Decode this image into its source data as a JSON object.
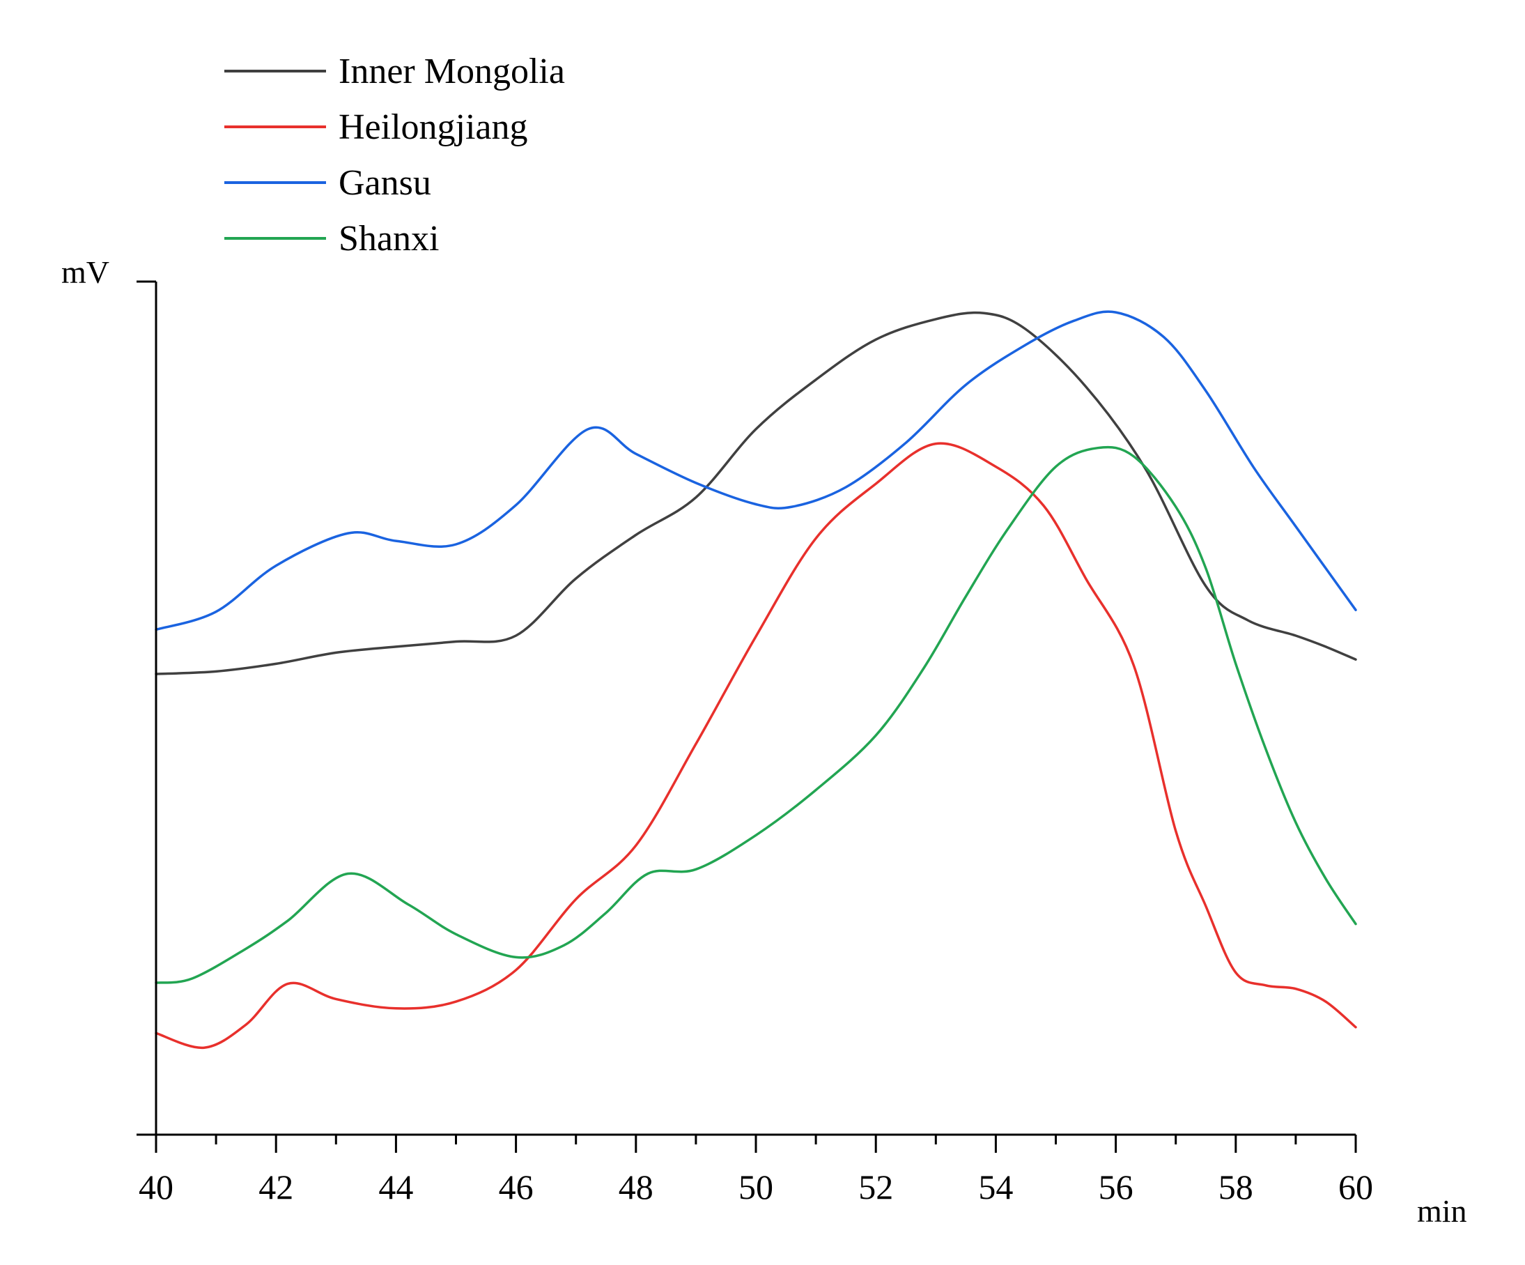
{
  "chart_data": {
    "type": "line",
    "title": "",
    "xlabel": "min",
    "ylabel": "mV",
    "xlim": [
      40,
      60
    ],
    "ylim": [
      0,
      100
    ],
    "x_ticks": [
      40,
      42,
      44,
      46,
      48,
      50,
      52,
      54,
      56,
      58,
      60
    ],
    "x_minor_step": 1,
    "legend": "top-left",
    "grid": false,
    "series": [
      {
        "name": "Inner Mongolia",
        "color": "#404040",
        "x": [
          40,
          41,
          42,
          43,
          44,
          45,
          46,
          47,
          48,
          49,
          50,
          51,
          52,
          53,
          53.8,
          54.5,
          55.5,
          56.5,
          57.5,
          58.2,
          59,
          59.5,
          60
        ],
        "y": [
          54,
          54.3,
          55.2,
          56.5,
          57.2,
          57.8,
          58.5,
          65.2,
          70.3,
          74.7,
          82.7,
          88.5,
          93.2,
          95.6,
          96.3,
          94.4,
          87.7,
          78,
          64.3,
          60.3,
          58.5,
          57.2,
          55.7
        ]
      },
      {
        "name": "Heilongjiang",
        "color": "#e8302c",
        "x": [
          40,
          40.8,
          41.5,
          42.2,
          43,
          44,
          45,
          46,
          47,
          48,
          49,
          50,
          51,
          52,
          53,
          54,
          54.8,
          55.5,
          56.3,
          57,
          57.5,
          58,
          58.5,
          59,
          59.5,
          60
        ],
        "y": [
          11.9,
          10.2,
          12.9,
          17.7,
          15.9,
          14.8,
          15.6,
          19.3,
          27.6,
          33.9,
          45.8,
          58.4,
          69.9,
          76.3,
          81,
          78.3,
          73.7,
          65.2,
          55,
          35.6,
          26.8,
          19,
          17.5,
          17.1,
          15.6,
          12.6
        ]
      },
      {
        "name": "Gansu",
        "color": "#1a63e0",
        "x": [
          40,
          41,
          42,
          43.2,
          44,
          45,
          46,
          47.2,
          48,
          49,
          50,
          50.6,
          51.5,
          52.5,
          53.5,
          54.5,
          55.3,
          56,
          56.8,
          57.5,
          58.3,
          59,
          60
        ],
        "y": [
          59.2,
          61.3,
          66.7,
          70.5,
          69.6,
          69.2,
          73.8,
          82.7,
          79.8,
          76.4,
          73.9,
          73.6,
          75.9,
          81.1,
          87.9,
          92.6,
          95.4,
          96.4,
          93.5,
          87.2,
          78.2,
          71.3,
          61.5
        ]
      },
      {
        "name": "Shanxi",
        "color": "#22a552",
        "x": [
          40,
          40.6,
          41.5,
          42.2,
          43.2,
          44.2,
          45,
          46,
          46.8,
          47.5,
          48.2,
          49,
          50,
          51,
          52,
          52.8,
          53.5,
          54.2,
          55,
          55.7,
          56.3,
          57,
          57.5,
          58,
          58.5,
          59,
          59.5,
          60
        ],
        "y": [
          17.8,
          18.3,
          21.8,
          25.1,
          30.6,
          27,
          23.5,
          20.8,
          22.2,
          26,
          30.6,
          31.1,
          35.1,
          40.4,
          46.8,
          54.7,
          63.1,
          71,
          78.3,
          80.5,
          79.5,
          73.6,
          66.4,
          55.2,
          45.2,
          36.6,
          30,
          24.7
        ]
      }
    ]
  }
}
